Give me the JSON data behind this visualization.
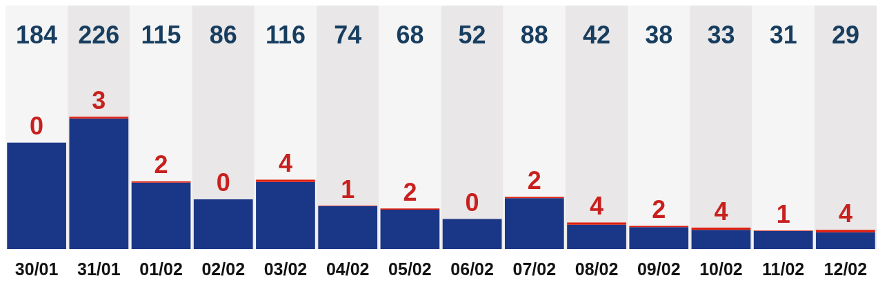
{
  "chart_data": {
    "type": "bar",
    "stacked": true,
    "data_labels": true,
    "categories": [
      "30/01",
      "31/01",
      "01/02",
      "02/02",
      "03/02",
      "04/02",
      "05/02",
      "06/02",
      "07/02",
      "08/02",
      "09/02",
      "10/02",
      "11/02",
      "12/02"
    ],
    "series": [
      {
        "color": "#1a3686",
        "values": [
          184,
          226,
          115,
          86,
          116,
          74,
          68,
          52,
          88,
          42,
          38,
          33,
          31,
          29
        ]
      },
      {
        "color": "#e0200f",
        "values": [
          0,
          3,
          2,
          0,
          4,
          1,
          2,
          0,
          2,
          4,
          2,
          4,
          1,
          4
        ]
      }
    ]
  }
}
